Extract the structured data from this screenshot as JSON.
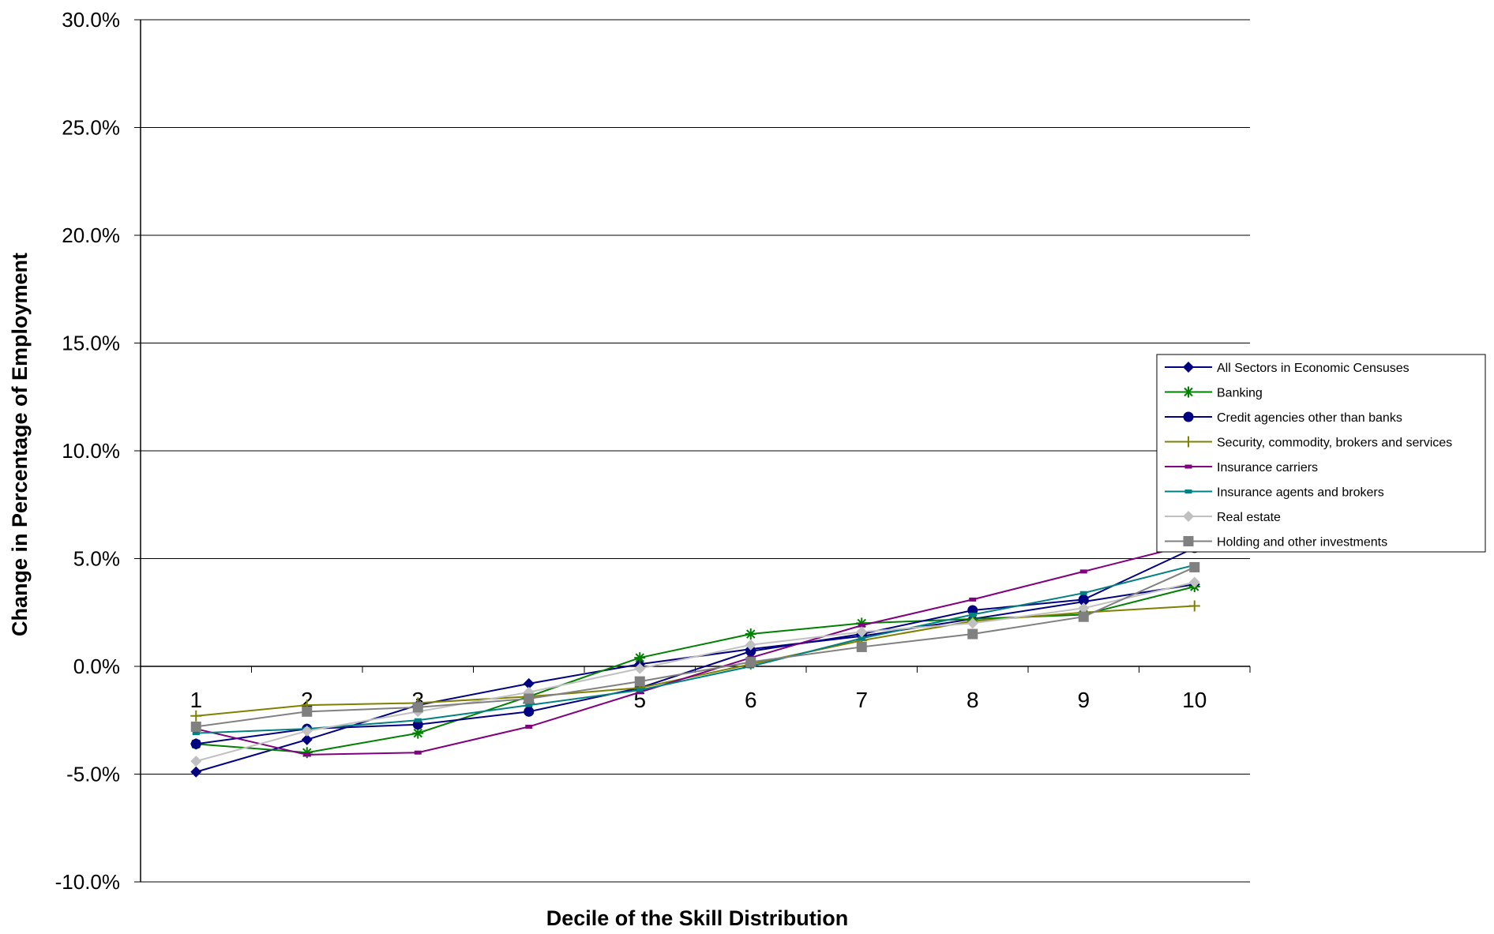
{
  "chart_data": {
    "type": "line",
    "title": "",
    "xlabel": "Decile of the Skill Distribution",
    "ylabel": "Change in Percentage of Employment",
    "x": [
      1,
      2,
      3,
      4,
      5,
      6,
      7,
      8,
      9,
      10
    ],
    "x_tick_labels": [
      "1",
      "2",
      "3",
      "4",
      "5",
      "6",
      "7",
      "8",
      "9",
      "10"
    ],
    "ylim": [
      -10.0,
      30.0
    ],
    "y_ticks": [
      30.0,
      25.0,
      20.0,
      15.0,
      10.0,
      5.0,
      0.0,
      -5.0,
      -10.0
    ],
    "y_tick_labels": [
      "30.0%",
      "25.0%",
      "20.0%",
      "15.0%",
      "10.0%",
      "5.0%",
      "0.0%",
      "-5.0%",
      "-10.0%"
    ],
    "grid": true,
    "legend_position": "right",
    "series": [
      {
        "name": "All Sectors in Economic Censuses",
        "color": "#000080",
        "marker": "diamond",
        "values": [
          -4.9,
          -3.4,
          -1.8,
          -0.8,
          0.1,
          0.8,
          1.4,
          2.2,
          3.0,
          3.8
        ]
      },
      {
        "name": "Banking",
        "color": "#008000",
        "marker": "star",
        "values": [
          -3.6,
          -4.0,
          -3.1,
          -1.4,
          0.4,
          1.5,
          2.0,
          2.2,
          2.4,
          3.7
        ]
      },
      {
        "name": "Credit agencies other than banks",
        "color": "#000080",
        "marker": "circle",
        "values": [
          -3.6,
          -2.9,
          -2.7,
          -2.1,
          -1.0,
          0.7,
          1.5,
          2.6,
          3.1,
          5.5
        ]
      },
      {
        "name": "Security, commodity, brokers and services",
        "color": "#808000",
        "marker": "plus",
        "values": [
          -2.3,
          -1.8,
          -1.7,
          -1.4,
          -1.0,
          0.1,
          1.2,
          2.1,
          2.5,
          2.8
        ]
      },
      {
        "name": "Insurance carriers",
        "color": "#800080",
        "marker": "dash",
        "values": [
          -2.9,
          -4.1,
          -4.0,
          -2.8,
          -1.2,
          0.4,
          1.9,
          3.1,
          4.4,
          5.7
        ]
      },
      {
        "name": "Insurance agents and brokers",
        "color": "#008080",
        "marker": "dash",
        "values": [
          -3.1,
          -2.9,
          -2.5,
          -1.8,
          -1.1,
          0.0,
          1.3,
          2.4,
          3.4,
          4.7
        ]
      },
      {
        "name": "Real estate",
        "color": "#c0c0c0",
        "marker": "diamond",
        "values": [
          -4.4,
          -3.0,
          -2.1,
          -1.2,
          -0.1,
          1.0,
          1.6,
          2.0,
          2.7,
          3.9
        ]
      },
      {
        "name": "Holding and other investments",
        "color": "#808080",
        "marker": "square",
        "values": [
          -2.8,
          -2.1,
          -1.9,
          -1.5,
          -0.7,
          0.2,
          0.9,
          1.5,
          2.3,
          4.6
        ]
      }
    ]
  }
}
